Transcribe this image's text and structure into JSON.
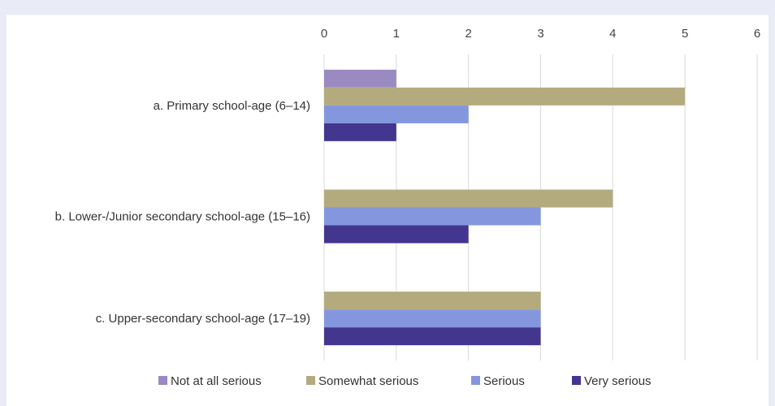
{
  "chart_data": {
    "type": "bar",
    "orientation": "horizontal",
    "categories": [
      "a. Primary school-age (6–14)",
      "b. Lower-/Junior secondary school-age (15–16)",
      "c. Upper-secondary school-age (17–19)"
    ],
    "series": [
      {
        "name": "Not at all serious",
        "color": "#9b89c1",
        "values": [
          1,
          0,
          0
        ]
      },
      {
        "name": "Somewhat serious",
        "color": "#b3ab7e",
        "values": [
          5,
          4,
          3
        ]
      },
      {
        "name": "Serious",
        "color": "#8497de",
        "values": [
          2,
          3,
          3
        ]
      },
      {
        "name": "Very serious",
        "color": "#43368f",
        "values": [
          1,
          2,
          3
        ]
      }
    ],
    "xlim": [
      0,
      6
    ],
    "xticks": [
      "0",
      "1",
      "2",
      "3",
      "4",
      "5",
      "6"
    ],
    "grid": true,
    "legend": "bottom"
  }
}
